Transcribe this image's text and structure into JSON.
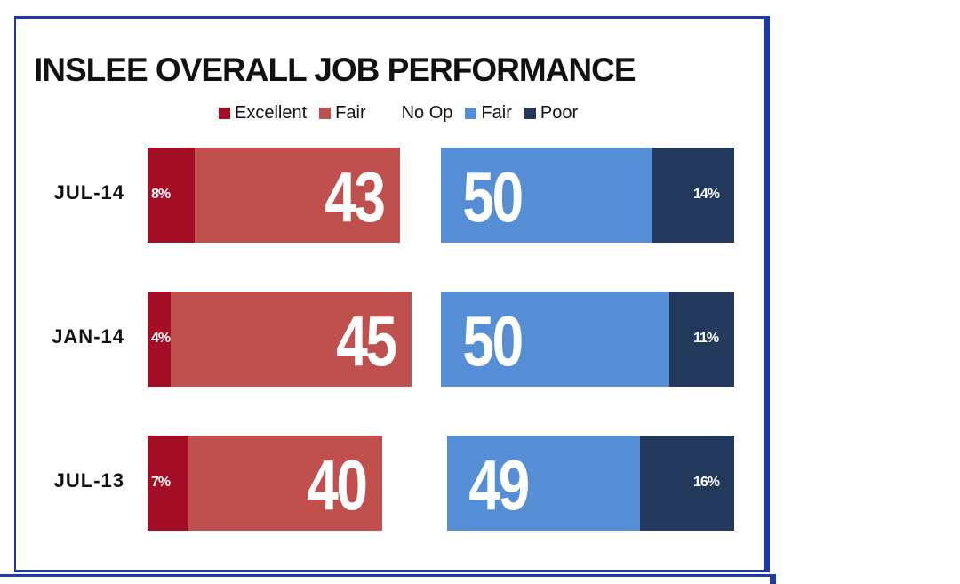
{
  "colors": {
    "excellent": "#a30d26",
    "fair_positive": "#c0504d",
    "fair_negative": "#558ed5",
    "poor": "#23395b",
    "frame": "#1f3aa8"
  },
  "chart_data": {
    "type": "bar",
    "orientation": "horizontal-diverging",
    "title": "INSLEE OVERALL JOB PERFORMANCE",
    "legend": [
      {
        "label": "Excellent",
        "color": "#a30d26"
      },
      {
        "label": "Fair",
        "color": "#c0504d"
      },
      {
        "label": "No Op",
        "color": null
      },
      {
        "label": "Fair",
        "color": "#558ed5"
      },
      {
        "label": "Poor",
        "color": "#23395b"
      }
    ],
    "categories": [
      "JUL-14",
      "JAN-14",
      "JUL-13"
    ],
    "rows": [
      {
        "label": "JUL-14",
        "excellent": 8,
        "excellent_text": "8%",
        "positive_total": 43,
        "positive_text": "43",
        "negative_total": 50,
        "negative_text": "50",
        "poor": 14,
        "poor_text": "14%"
      },
      {
        "label": "JAN-14",
        "excellent": 4,
        "excellent_text": "4%",
        "positive_total": 45,
        "positive_text": "45",
        "negative_total": 50,
        "negative_text": "50",
        "poor": 11,
        "poor_text": "11%"
      },
      {
        "label": "JUL-13",
        "excellent": 7,
        "excellent_text": "7%",
        "positive_total": 40,
        "positive_text": "40",
        "negative_total": 49,
        "negative_text": "49",
        "poor": 16,
        "poor_text": "16%"
      }
    ]
  }
}
